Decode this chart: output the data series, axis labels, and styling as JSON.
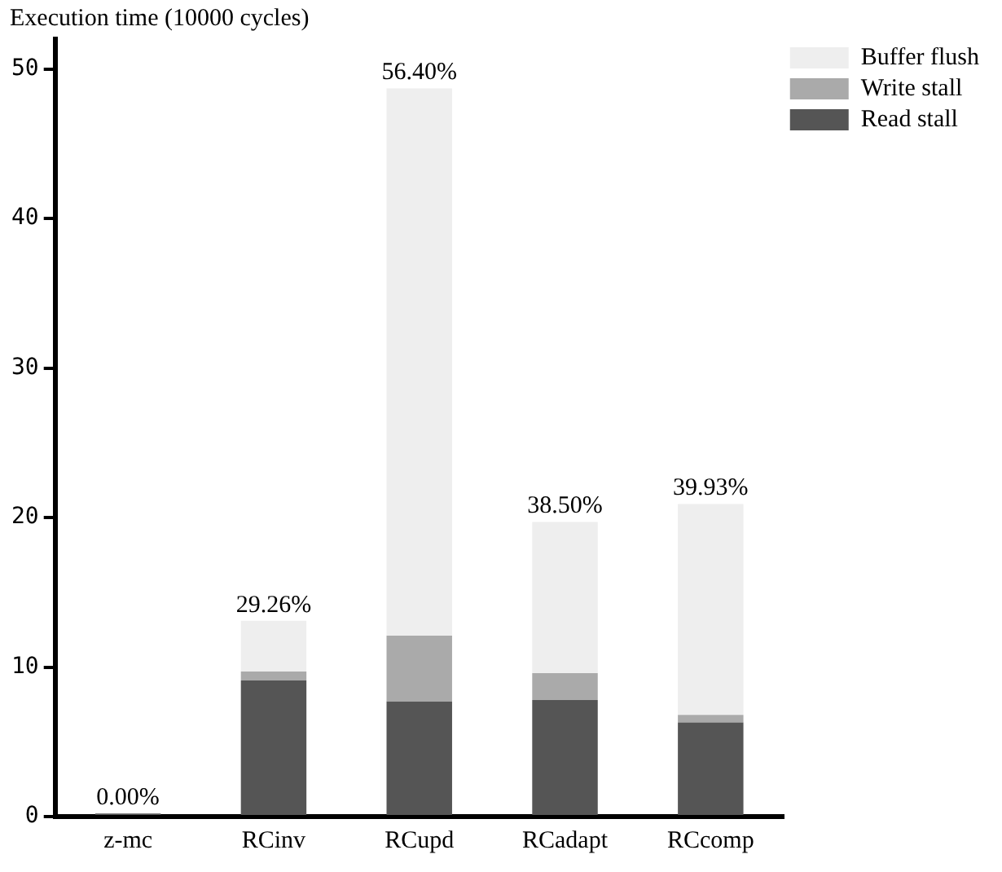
{
  "chart_data": {
    "type": "bar",
    "stacked": true,
    "ylabel": "Execution time (10000 cycles)",
    "categories": [
      "z-mc",
      "RCinv",
      "RCupd",
      "RCadapt",
      "RCcomp"
    ],
    "series": [
      {
        "name": "Read stall",
        "color": "#555555",
        "values": [
          0.2,
          9.1,
          7.7,
          7.8,
          6.3
        ]
      },
      {
        "name": "Write stall",
        "color": "#aaaaaa",
        "values": [
          0,
          0.6,
          4.4,
          1.8,
          0.5
        ]
      },
      {
        "name": "Buffer flush",
        "color": "#eeeeee",
        "values": [
          0,
          3.4,
          36.6,
          10.1,
          14.1
        ]
      }
    ],
    "ylim": [
      0,
      52
    ],
    "yticks": [
      0,
      10,
      20,
      30,
      40,
      50
    ],
    "grid": false,
    "legend": "top right",
    "annotations": [
      {
        "text": "0.00%",
        "x": "z-mc",
        "y": 0.2
      },
      {
        "text": "29.26%",
        "x": "RCinv",
        "y": 13.1
      },
      {
        "text": "56.40%",
        "x": "RCupd",
        "y": 48.7
      },
      {
        "text": "38.50%",
        "x": "RCadapt",
        "y": 19.7
      },
      {
        "text": "39.93%",
        "x": "RCcomp",
        "y": 20.9
      }
    ]
  }
}
